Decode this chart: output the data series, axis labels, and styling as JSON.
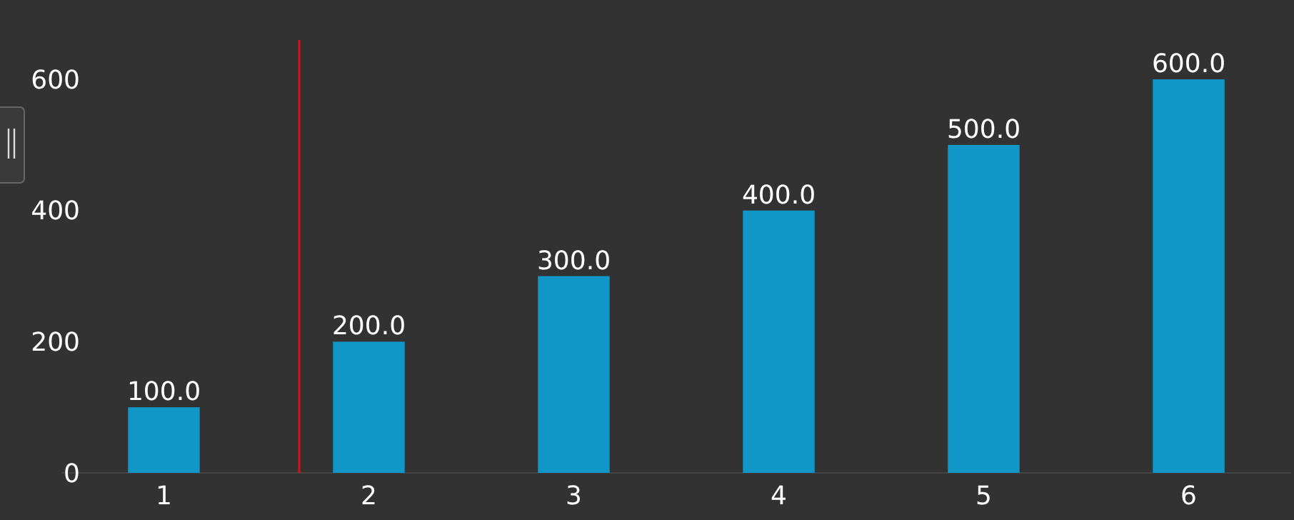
{
  "chart_data": {
    "type": "bar",
    "x": [
      1,
      2,
      3,
      4,
      5,
      6
    ],
    "xlim": [
      0.5,
      6.5
    ],
    "xticks": [
      1,
      2,
      3,
      4,
      5,
      6
    ],
    "values": [
      100,
      200,
      300,
      400,
      500,
      600
    ],
    "color": "#1097c8",
    "value_labels": [
      "100.0",
      "200.0",
      "300.0",
      "400.0",
      "500.0",
      "600.0"
    ],
    "ylim": [
      0,
      660
    ],
    "yticks": [
      0,
      200,
      400,
      600
    ],
    "grid": false,
    "ref_lines": [
      {
        "axis": "x",
        "value": 1.66,
        "color": "#e01010"
      }
    ]
  }
}
